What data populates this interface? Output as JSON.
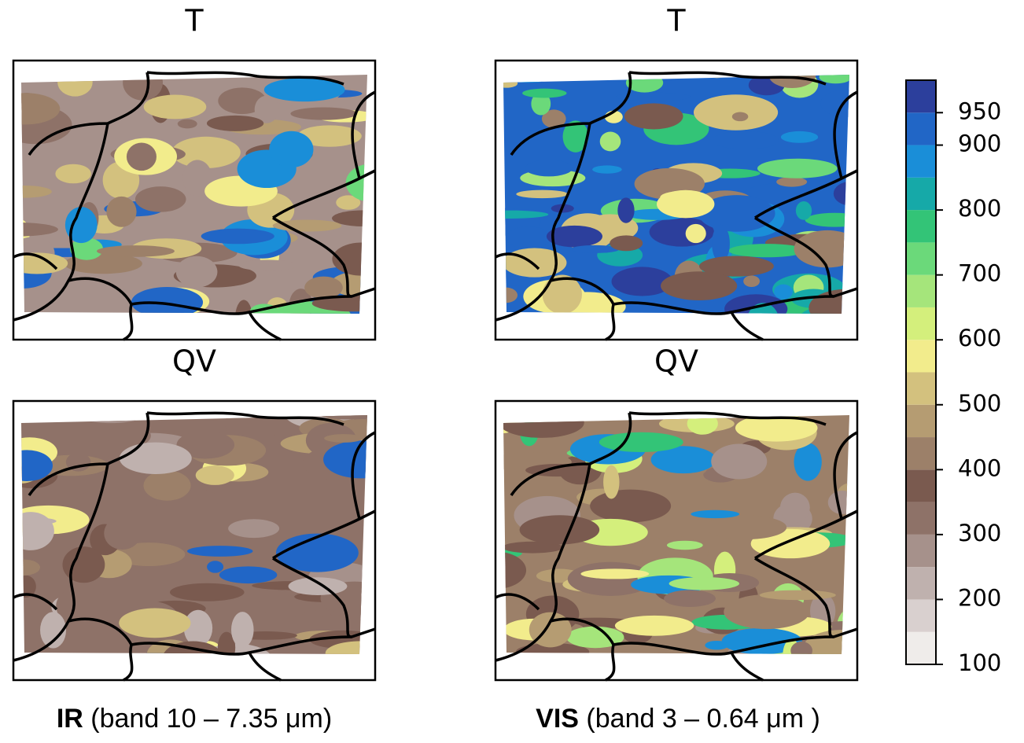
{
  "panels": [
    {
      "title": "T"
    },
    {
      "title": "T"
    },
    {
      "title": "QV"
    },
    {
      "title": "QV"
    }
  ],
  "captions": [
    {
      "bold": "IR",
      "text": "(band 10 – 7.35 μm)"
    },
    {
      "bold": "VIS",
      "text": "(band 3 – 0.64 μm )"
    }
  ],
  "colorbar": {
    "levels": [
      100,
      150,
      200,
      250,
      300,
      350,
      400,
      450,
      500,
      550,
      600,
      650,
      700,
      750,
      800,
      850,
      900,
      950,
      1000
    ],
    "colors": [
      "#efecea",
      "#d9d0cf",
      "#bfb1ae",
      "#a6918b",
      "#8e7268",
      "#7a5a4f",
      "#9c8069",
      "#b59c72",
      "#d3c17e",
      "#f2ec8c",
      "#d4ef7c",
      "#a5e57b",
      "#6bd97a",
      "#33c477",
      "#16a9a8",
      "#1a8ed8",
      "#2166c6",
      "#2c3f9c"
    ],
    "ticks": [
      100,
      200,
      300,
      400,
      500,
      600,
      700,
      800,
      900,
      950
    ]
  }
}
